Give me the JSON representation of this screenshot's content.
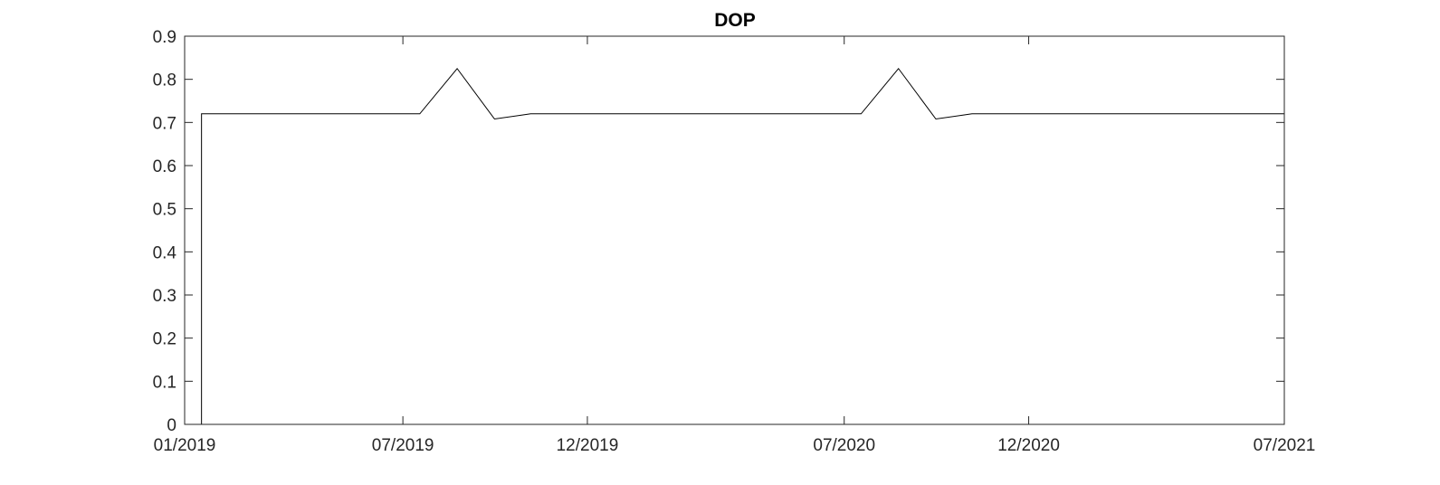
{
  "chart_data": {
    "type": "line",
    "title": "DOP",
    "xlabel": "",
    "ylabel": "",
    "x_axis": {
      "ticks": [
        "2019-01-01",
        "2019-07-01",
        "2019-12-01",
        "2020-07-01",
        "2020-12-01",
        "2021-07-01"
      ],
      "tick_labels": [
        "01/2019",
        "07/2019",
        "12/2019",
        "07/2020",
        "12/2020",
        "07/2021"
      ],
      "range": [
        "2019-01-01",
        "2021-07-01"
      ]
    },
    "y_axis": {
      "ticks": [
        0,
        0.1,
        0.2,
        0.3,
        0.4,
        0.5,
        0.6,
        0.7,
        0.8,
        0.9
      ],
      "tick_labels": [
        "0",
        "0.1",
        "0.2",
        "0.3",
        "0.4",
        "0.5",
        "0.6",
        "0.7",
        "0.8",
        "0.9"
      ],
      "range": [
        0,
        0.9
      ]
    },
    "grid": false,
    "legend": "none",
    "colors": {
      "line": "#000000",
      "axes": "#262626",
      "background": "#ffffff"
    },
    "series": [
      {
        "points": [
          [
            "2019-01-01",
            0
          ],
          [
            "2019-01-15",
            0
          ],
          [
            "2019-01-15",
            0.72
          ],
          [
            "2019-07-15",
            0.72
          ],
          [
            "2019-08-15",
            0.825
          ],
          [
            "2019-09-15",
            0.708
          ],
          [
            "2019-10-15",
            0.72
          ],
          [
            "2020-07-15",
            0.72
          ],
          [
            "2020-08-15",
            0.825
          ],
          [
            "2020-09-15",
            0.708
          ],
          [
            "2020-10-15",
            0.72
          ],
          [
            "2021-07-01",
            0.72
          ]
        ]
      }
    ]
  }
}
